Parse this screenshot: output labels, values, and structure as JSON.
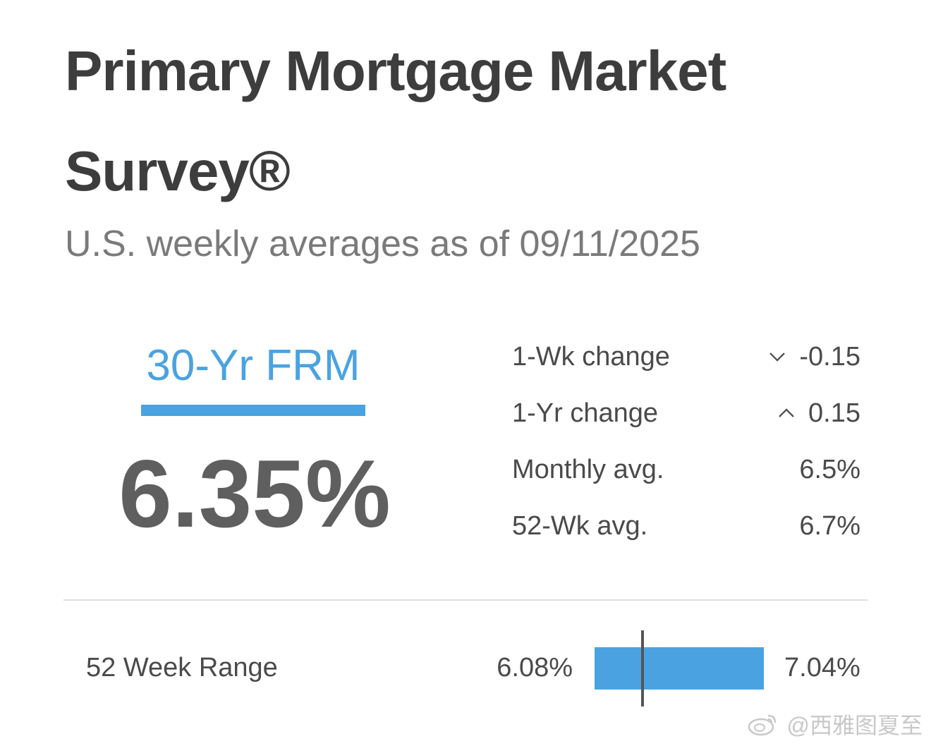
{
  "title": "Primary Mortgage Market Survey®",
  "subtitle": "U.S. weekly averages as of 09/11/2025",
  "product": {
    "label": "30-Yr FRM",
    "rate": "6.35%",
    "accent_color": "#4aa3e0"
  },
  "stats": [
    {
      "label": "1-Wk change",
      "value": "-0.15",
      "icon": "chevron-down-icon"
    },
    {
      "label": "1-Yr change",
      "value": "0.15",
      "icon": "chevron-up-icon"
    },
    {
      "label": "Monthly avg.",
      "value": "6.5%"
    },
    {
      "label": "52-Wk avg.",
      "value": "6.7%"
    }
  ],
  "range": {
    "label": "52 Week Range",
    "low": "6.08%",
    "high": "7.04%",
    "low_value": 6.08,
    "high_value": 7.04,
    "current_value": 6.35
  },
  "watermark": {
    "text": "@西雅图夏至"
  }
}
